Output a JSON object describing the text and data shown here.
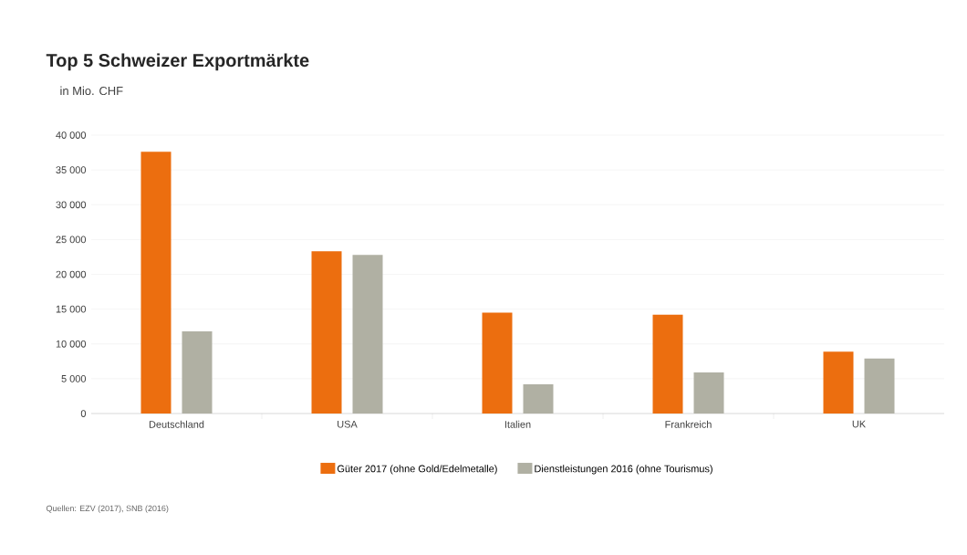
{
  "chart_data": {
    "type": "bar",
    "title": "Top 5 Schweizer Exportmärkte",
    "subtitle": "in Mio. CHF",
    "categories": [
      "Deutschland",
      "USA",
      "Italien",
      "Frankreich",
      "UK"
    ],
    "series": [
      {
        "name": "Güter 2017 (ohne Gold/Edelmetalle)",
        "color": "#ec6e0f",
        "values": [
          37600,
          23300,
          14500,
          14200,
          8900
        ]
      },
      {
        "name": "Dienstleistungen 2016 (ohne Tourismus)",
        "color": "#b0b0a3",
        "values": [
          11800,
          22800,
          4200,
          5900,
          7900
        ]
      }
    ],
    "ylim": [
      0,
      40000
    ],
    "yticks": [
      {
        "value": 0,
        "label": "0"
      },
      {
        "value": 5000,
        "label": "5 000"
      },
      {
        "value": 10000,
        "label": "10 000"
      },
      {
        "value": 15000,
        "label": "15 000"
      },
      {
        "value": 20000,
        "label": "20 000"
      },
      {
        "value": 25000,
        "label": "25 000"
      },
      {
        "value": 30000,
        "label": "30 000"
      },
      {
        "value": 35000,
        "label": "35 000"
      },
      {
        "value": 40000,
        "label": "40 000"
      }
    ],
    "grid": "y",
    "legend": "bottom",
    "annotations": [
      "Quellen: EZV (2017), SNB (2016)"
    ]
  }
}
